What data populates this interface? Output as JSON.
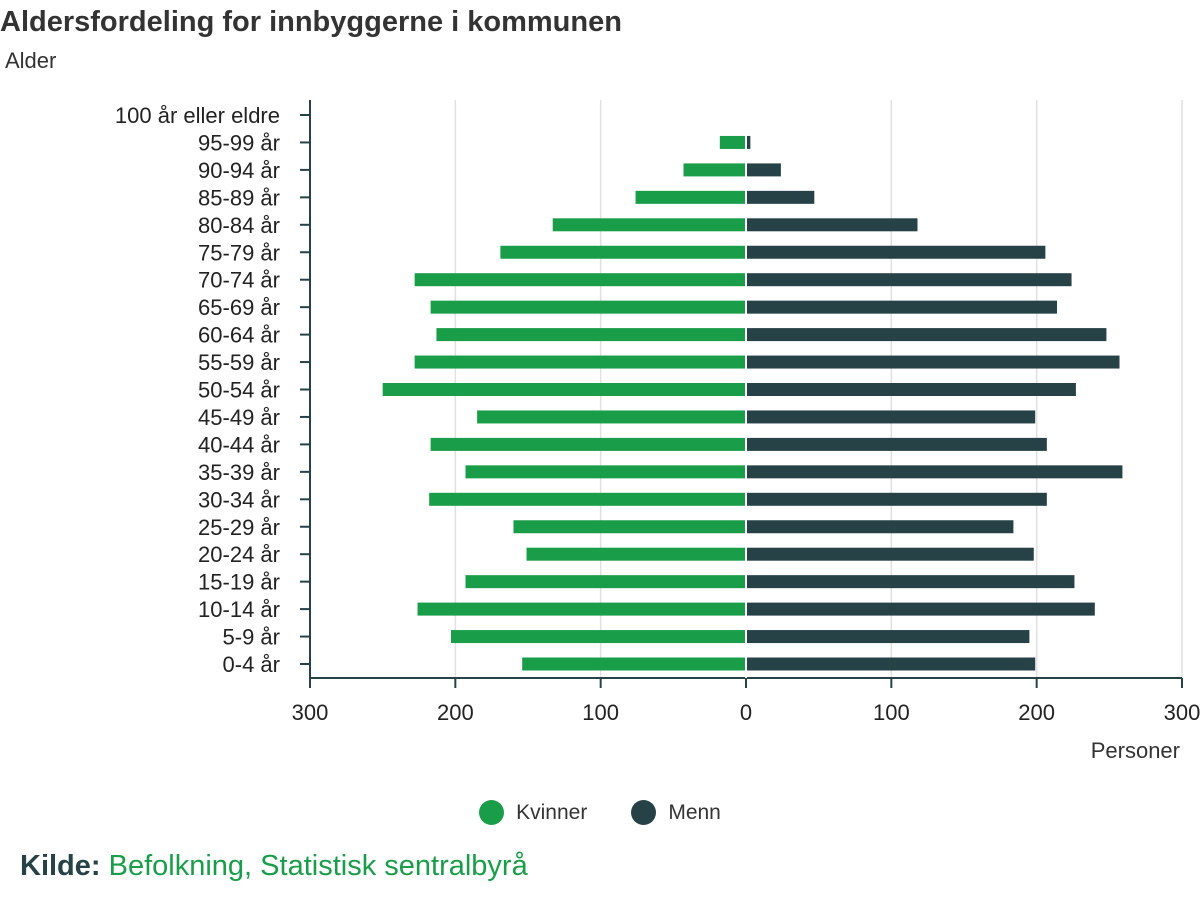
{
  "chart_data": {
    "type": "bar",
    "orientation": "horizontal",
    "title": "Aldersfordeling for innbyggerne i kommunen",
    "subtitle": "Alder",
    "xlabel": "Personer",
    "categories": [
      "0-4 år",
      "5-9 år",
      "10-14 år",
      "15-19 år",
      "20-24 år",
      "25-29 år",
      "30-34 år",
      "35-39 år",
      "40-44 år",
      "45-49 år",
      "50-54 år",
      "55-59 år",
      "60-64 år",
      "65-69 år",
      "70-74 år",
      "75-79 år",
      "80-84 år",
      "85-89 år",
      "90-94 år",
      "95-99 år",
      "100 år eller eldre"
    ],
    "series": [
      {
        "name": "Kvinner",
        "color": "#1a9d49",
        "side": "left",
        "values": [
          154,
          203,
          226,
          193,
          151,
          160,
          218,
          193,
          217,
          185,
          250,
          228,
          213,
          217,
          228,
          169,
          133,
          76,
          43,
          18,
          0
        ]
      },
      {
        "name": "Menn",
        "color": "#274247",
        "side": "right",
        "values": [
          199,
          195,
          240,
          226,
          198,
          184,
          207,
          259,
          207,
          199,
          227,
          257,
          248,
          214,
          224,
          206,
          118,
          47,
          24,
          3,
          0
        ]
      }
    ],
    "xlim": [
      -300,
      300
    ],
    "xticks": [
      -300,
      -200,
      -100,
      0,
      100,
      200,
      300
    ],
    "xtick_labels": [
      "300",
      "200",
      "100",
      "0",
      "100",
      "200",
      "300"
    ],
    "grid": true,
    "legend_position": "bottom"
  },
  "source": {
    "label": "Kilde:",
    "text": "Befolkning, Statistisk sentralbyrå"
  }
}
